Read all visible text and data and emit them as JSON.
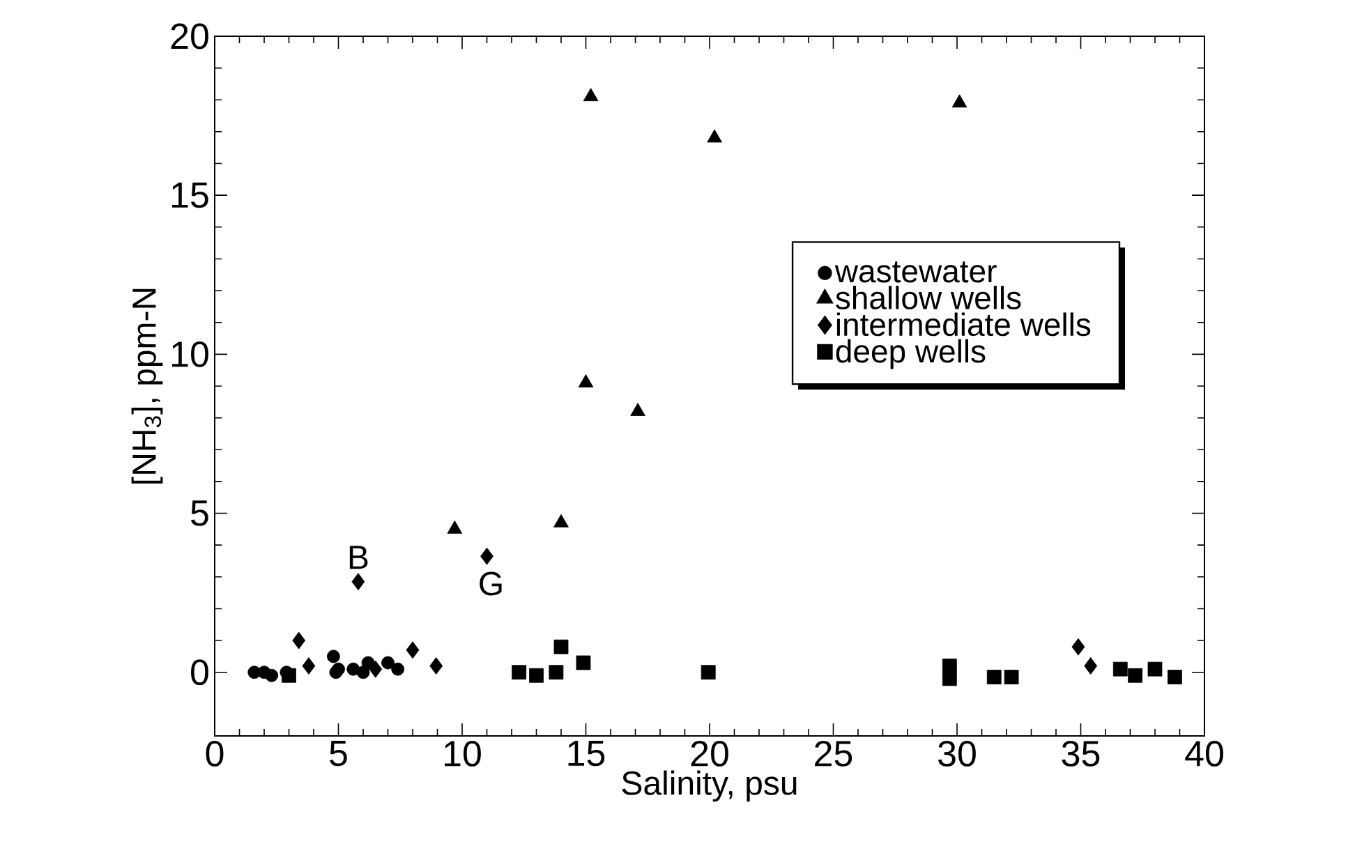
{
  "chart_data": {
    "type": "scatter",
    "xlabel": "Salinity, psu",
    "ylabel": "[NH$_{3}$], ppm-N",
    "xlim": [
      0,
      40
    ],
    "ylim": [
      -2,
      20
    ],
    "xticks": [
      0,
      5,
      10,
      15,
      20,
      25,
      30,
      35,
      40
    ],
    "yticks": [
      0,
      5,
      10,
      15,
      20
    ],
    "grid": false,
    "legend": "right",
    "annotations": [
      {
        "text": "B",
        "x": 5.8,
        "y": 2.85
      },
      {
        "text": "G",
        "x": 11.0,
        "y": 3.65
      }
    ],
    "series": [
      {
        "name": "wastewater",
        "color": "#000000",
        "marker": "circle",
        "x": [
          1.6,
          2.0,
          2.3,
          2.9,
          4.8,
          4.9,
          5.0,
          5.6,
          6.0,
          6.2,
          6.6,
          7.0,
          7.4
        ],
        "values": [
          0,
          0,
          -0.1,
          0,
          0.5,
          0,
          0.1,
          0.1,
          0,
          0.3,
          null,
          0.3,
          0.1
        ]
      },
      {
        "name": "shallow wells",
        "color": "#000000",
        "marker": "triangle",
        "x": [
          15.2,
          20.2,
          30.1,
          15.0,
          17.1,
          9.7,
          14.0
        ],
        "values": [
          18.1,
          16.8,
          17.9,
          9.1,
          8.2,
          4.5,
          4.7
        ]
      },
      {
        "name": "intermediate wells",
        "color": "#000000",
        "marker": "diamond",
        "x": [
          5.8,
          11.0,
          3.4,
          3.8,
          8.0,
          8.95,
          6.5,
          34.9,
          35.4
        ],
        "values": [
          2.85,
          3.65,
          1.0,
          0.2,
          0.7,
          0.2,
          0.1,
          0.8,
          0.2
        ]
      },
      {
        "name": "deep wells",
        "color": "#000000",
        "marker": "square",
        "x": [
          3.0,
          12.3,
          13.0,
          13.8,
          14.0,
          14.9,
          19.95,
          29.7,
          29.7,
          31.5,
          32.2,
          36.6,
          37.2,
          38.0,
          38.8
        ],
        "values": [
          -0.1,
          0,
          -0.1,
          0,
          0.8,
          0.3,
          0,
          0.2,
          -0.2,
          -0.15,
          -0.15,
          0.1,
          -0.1,
          0.1,
          -0.15
        ]
      }
    ]
  }
}
